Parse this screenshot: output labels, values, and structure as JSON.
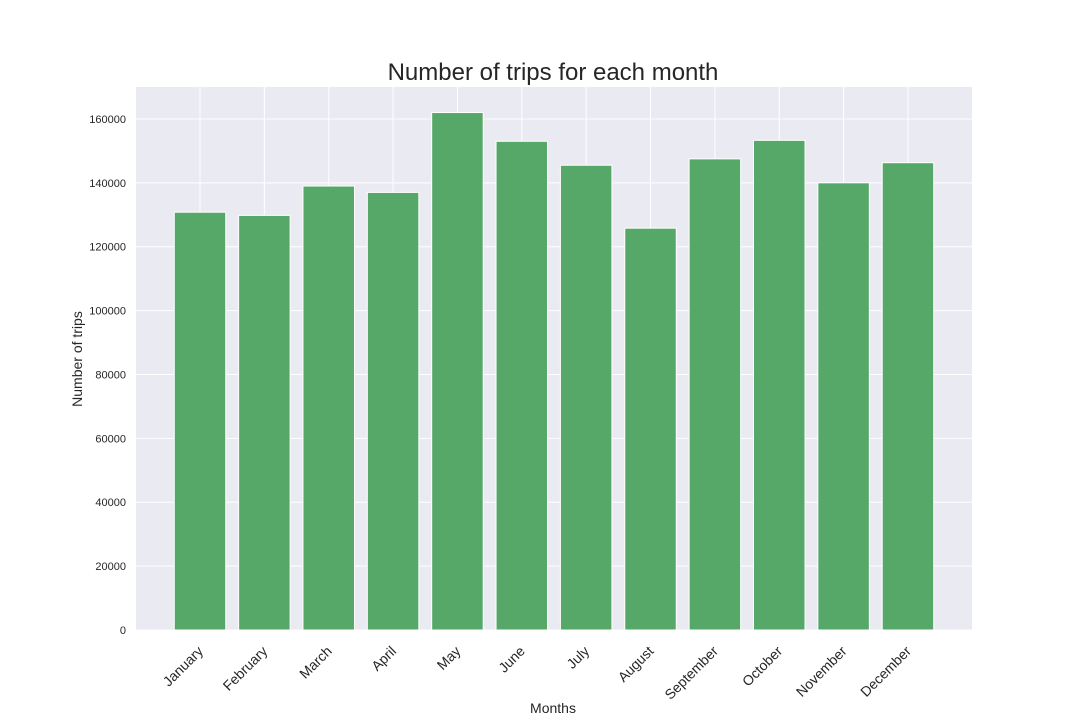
{
  "chart_data": {
    "type": "bar",
    "title": "Number of trips for each month",
    "xlabel": "Months",
    "ylabel": "Number of trips",
    "categories": [
      "January",
      "February",
      "March",
      "April",
      "May",
      "June",
      "July",
      "August",
      "September",
      "October",
      "November",
      "December"
    ],
    "values": [
      130800,
      129800,
      139000,
      137000,
      162000,
      153000,
      145500,
      125800,
      147500,
      153300,
      140000,
      146300
    ],
    "ylim": [
      0,
      170000
    ],
    "yticks": [
      0,
      20000,
      40000,
      60000,
      80000,
      100000,
      120000,
      140000,
      160000
    ],
    "ytick_labels": [
      "0",
      "20000",
      "40000",
      "60000",
      "80000",
      "100000",
      "120000",
      "140000",
      "160000"
    ],
    "grid": true,
    "bar_color": "#55a868",
    "background_color": "#eaeaf2",
    "grid_color": "#ffffff"
  }
}
